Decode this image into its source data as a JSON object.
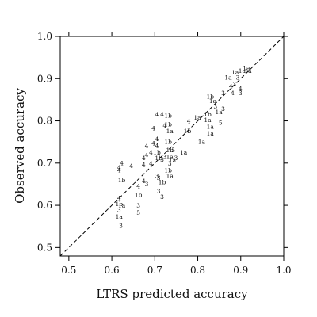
{
  "chart_data": {
    "type": "scatter",
    "title": "",
    "xlabel": "LTRS predicted accuracy",
    "ylabel": "Observed accuracy",
    "xlim": [
      0.48,
      1.0
    ],
    "ylim": [
      0.48,
      1.0
    ],
    "xticks": [
      "0.5",
      "0.6",
      "0.7",
      "0.8",
      "0.9",
      "1.0"
    ],
    "yticks": [
      "0.5",
      "0.6",
      "0.7",
      "0.8",
      "0.9",
      "1.0"
    ],
    "reference_line": "y = x (dashed)",
    "marker_style": "text labels",
    "points": [
      {
        "x": 0.617,
        "y": 0.683,
        "label": "4"
      },
      {
        "x": 0.617,
        "y": 0.689,
        "label": "4"
      },
      {
        "x": 0.623,
        "y": 0.7,
        "label": "4"
      },
      {
        "x": 0.623,
        "y": 0.659,
        "label": "1b"
      },
      {
        "x": 0.645,
        "y": 0.693,
        "label": "4"
      },
      {
        "x": 0.617,
        "y": 0.617,
        "label": "4"
      },
      {
        "x": 0.617,
        "y": 0.603,
        "label": "1b"
      },
      {
        "x": 0.623,
        "y": 0.599,
        "label": "1a"
      },
      {
        "x": 0.617,
        "y": 0.589,
        "label": "3"
      },
      {
        "x": 0.617,
        "y": 0.573,
        "label": "1a"
      },
      {
        "x": 0.621,
        "y": 0.551,
        "label": "3"
      },
      {
        "x": 0.662,
        "y": 0.645,
        "label": "4"
      },
      {
        "x": 0.662,
        "y": 0.625,
        "label": "1b"
      },
      {
        "x": 0.662,
        "y": 0.599,
        "label": "3"
      },
      {
        "x": 0.662,
        "y": 0.582,
        "label": "5"
      },
      {
        "x": 0.674,
        "y": 0.712,
        "label": "4"
      },
      {
        "x": 0.674,
        "y": 0.696,
        "label": "4"
      },
      {
        "x": 0.681,
        "y": 0.741,
        "label": "4"
      },
      {
        "x": 0.681,
        "y": 0.719,
        "label": "4"
      },
      {
        "x": 0.697,
        "y": 0.747,
        "label": "4"
      },
      {
        "x": 0.697,
        "y": 0.782,
        "label": "4"
      },
      {
        "x": 0.691,
        "y": 0.725,
        "label": "4"
      },
      {
        "x": 0.691,
        "y": 0.699,
        "label": "4"
      },
      {
        "x": 0.674,
        "y": 0.657,
        "label": "4"
      },
      {
        "x": 0.681,
        "y": 0.65,
        "label": "3"
      },
      {
        "x": 0.705,
        "y": 0.757,
        "label": "4"
      },
      {
        "x": 0.705,
        "y": 0.741,
        "label": "4"
      },
      {
        "x": 0.705,
        "y": 0.725,
        "label": "1b"
      },
      {
        "x": 0.709,
        "y": 0.712,
        "label": "1b"
      },
      {
        "x": 0.717,
        "y": 0.708,
        "label": "3"
      },
      {
        "x": 0.723,
        "y": 0.715,
        "label": "3"
      },
      {
        "x": 0.705,
        "y": 0.67,
        "label": "3"
      },
      {
        "x": 0.709,
        "y": 0.665,
        "label": "3"
      },
      {
        "x": 0.717,
        "y": 0.655,
        "label": "1b"
      },
      {
        "x": 0.709,
        "y": 0.633,
        "label": "3"
      },
      {
        "x": 0.717,
        "y": 0.62,
        "label": "3"
      },
      {
        "x": 0.705,
        "y": 0.815,
        "label": "4"
      },
      {
        "x": 0.717,
        "y": 0.815,
        "label": "4"
      },
      {
        "x": 0.723,
        "y": 0.789,
        "label": "4"
      },
      {
        "x": 0.731,
        "y": 0.812,
        "label": "1b"
      },
      {
        "x": 0.731,
        "y": 0.792,
        "label": "1b"
      },
      {
        "x": 0.735,
        "y": 0.776,
        "label": "1a"
      },
      {
        "x": 0.731,
        "y": 0.75,
        "label": "1b"
      },
      {
        "x": 0.735,
        "y": 0.731,
        "label": "1b"
      },
      {
        "x": 0.735,
        "y": 0.715,
        "label": "1a"
      },
      {
        "x": 0.749,
        "y": 0.712,
        "label": "3"
      },
      {
        "x": 0.741,
        "y": 0.706,
        "label": "1a"
      },
      {
        "x": 0.735,
        "y": 0.699,
        "label": "3"
      },
      {
        "x": 0.731,
        "y": 0.683,
        "label": "1b"
      },
      {
        "x": 0.735,
        "y": 0.67,
        "label": "1a"
      },
      {
        "x": 0.743,
        "y": 0.731,
        "label": "5"
      },
      {
        "x": 0.767,
        "y": 0.725,
        "label": "1a"
      },
      {
        "x": 0.776,
        "y": 0.776,
        "label": "1b"
      },
      {
        "x": 0.779,
        "y": 0.799,
        "label": "4"
      },
      {
        "x": 0.799,
        "y": 0.808,
        "label": "1a"
      },
      {
        "x": 0.809,
        "y": 0.75,
        "label": "1a"
      },
      {
        "x": 0.823,
        "y": 0.815,
        "label": "1b"
      },
      {
        "x": 0.823,
        "y": 0.802,
        "label": "1a"
      },
      {
        "x": 0.829,
        "y": 0.786,
        "label": "1a"
      },
      {
        "x": 0.829,
        "y": 0.77,
        "label": "1a"
      },
      {
        "x": 0.829,
        "y": 0.857,
        "label": "1b"
      },
      {
        "x": 0.835,
        "y": 0.847,
        "label": "1a"
      },
      {
        "x": 0.841,
        "y": 0.834,
        "label": "3"
      },
      {
        "x": 0.849,
        "y": 0.821,
        "label": "1a"
      },
      {
        "x": 0.859,
        "y": 0.828,
        "label": "3"
      },
      {
        "x": 0.853,
        "y": 0.795,
        "label": "5"
      },
      {
        "x": 0.859,
        "y": 0.866,
        "label": "3"
      },
      {
        "x": 0.871,
        "y": 0.902,
        "label": "1a"
      },
      {
        "x": 0.877,
        "y": 0.882,
        "label": "4"
      },
      {
        "x": 0.885,
        "y": 0.886,
        "label": "3"
      },
      {
        "x": 0.881,
        "y": 0.866,
        "label": "4"
      },
      {
        "x": 0.887,
        "y": 0.915,
        "label": "1a"
      },
      {
        "x": 0.893,
        "y": 0.902,
        "label": "3"
      },
      {
        "x": 0.899,
        "y": 0.876,
        "label": "4"
      },
      {
        "x": 0.899,
        "y": 0.866,
        "label": "3"
      },
      {
        "x": 0.903,
        "y": 0.918,
        "label": "1a"
      },
      {
        "x": 0.913,
        "y": 0.925,
        "label": "1a"
      },
      {
        "x": 0.917,
        "y": 0.918,
        "label": "1a"
      }
    ]
  }
}
